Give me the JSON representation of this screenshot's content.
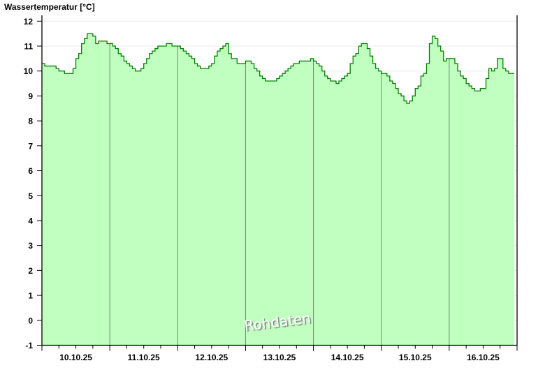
{
  "chart_data": {
    "type": "area",
    "step": true,
    "title": "Wassertemperatur [°C]",
    "watermark": "Rohdaten",
    "ylim": [
      -1,
      12
    ],
    "yticks": [
      -1,
      0,
      1,
      2,
      3,
      4,
      5,
      6,
      7,
      8,
      9,
      10,
      11,
      12
    ],
    "xlim": [
      "10.10.25 00:00",
      "17.10.25 00:00"
    ],
    "x_tick_labels": [
      "10.10.25",
      "11.10.25",
      "12.10.25",
      "13.10.25",
      "14.10.25",
      "15.10.25",
      "16.10.25"
    ],
    "x_start": "10.10.25 00:00",
    "x_interval_hours": 1,
    "grid": true,
    "colors": {
      "fill": "#c0ffc0",
      "line": "#008000",
      "day_separator": "#6a8f6a",
      "grid": "#e8e8e8"
    },
    "values": [
      10.3,
      10.2,
      10.2,
      10.2,
      10.2,
      10.1,
      10.0,
      10.0,
      9.9,
      9.9,
      9.9,
      10.1,
      10.5,
      10.7,
      11.1,
      11.3,
      11.5,
      11.5,
      11.4,
      11.1,
      11.2,
      11.2,
      11.2,
      11.1,
      11.1,
      11.0,
      10.9,
      10.7,
      10.6,
      10.4,
      10.3,
      10.2,
      10.1,
      10.0,
      10.0,
      10.1,
      10.3,
      10.5,
      10.7,
      10.8,
      10.9,
      11.0,
      11.0,
      11.0,
      11.1,
      11.1,
      11.0,
      11.0,
      11.0,
      10.9,
      10.8,
      10.7,
      10.6,
      10.5,
      10.3,
      10.2,
      10.1,
      10.1,
      10.1,
      10.2,
      10.3,
      10.6,
      10.8,
      10.9,
      11.0,
      11.1,
      10.7,
      10.5,
      10.5,
      10.3,
      10.3,
      10.3,
      10.4,
      10.4,
      10.3,
      10.1,
      10.0,
      9.8,
      9.7,
      9.6,
      9.6,
      9.6,
      9.6,
      9.7,
      9.8,
      9.9,
      10.0,
      10.1,
      10.2,
      10.3,
      10.3,
      10.4,
      10.4,
      10.4,
      10.4,
      10.5,
      10.4,
      10.3,
      10.2,
      10.0,
      9.8,
      9.7,
      9.6,
      9.6,
      9.5,
      9.6,
      9.7,
      9.8,
      9.9,
      10.3,
      10.6,
      10.7,
      11.0,
      11.1,
      11.1,
      10.9,
      10.6,
      10.3,
      10.1,
      10.0,
      9.9,
      9.9,
      9.8,
      9.6,
      9.5,
      9.3,
      9.1,
      9.0,
      8.8,
      8.7,
      8.8,
      9.0,
      9.3,
      9.4,
      9.8,
      9.9,
      10.3,
      11.1,
      11.4,
      11.3,
      11.0,
      10.8,
      10.4,
      10.5,
      10.5,
      10.5,
      10.3,
      10.0,
      9.8,
      9.7,
      9.5,
      9.4,
      9.3,
      9.2,
      9.2,
      9.3,
      9.3,
      9.7,
      10.1,
      10.0,
      10.1,
      10.5,
      10.5,
      10.1,
      10.0,
      9.9,
      9.9
    ]
  }
}
